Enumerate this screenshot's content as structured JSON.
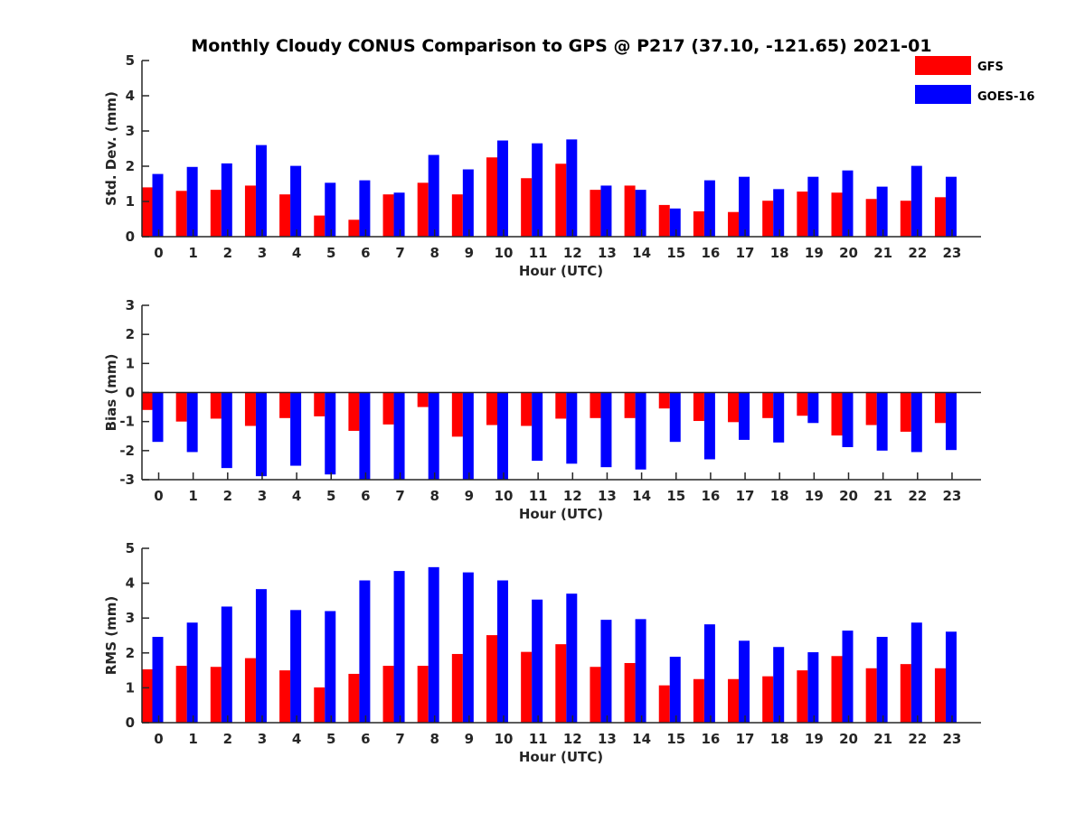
{
  "chart_data": {
    "type": "bar",
    "title": "Monthly Cloudy CONUS Comparison to GPS @ P217 (37.10, -121.65) 2021-01",
    "legend": {
      "placement": "top-right",
      "entries": [
        {
          "name": "GFS",
          "color": "#ff0000"
        },
        {
          "name": "GOES-16",
          "color": "#0000ff"
        }
      ]
    },
    "categories": [
      "0",
      "1",
      "2",
      "3",
      "4",
      "5",
      "6",
      "7",
      "8",
      "9",
      "10",
      "11",
      "12",
      "13",
      "14",
      "15",
      "16",
      "17",
      "18",
      "19",
      "20",
      "21",
      "22",
      "23"
    ],
    "panels": [
      {
        "name": "std-dev",
        "xlabel": "Hour (UTC)",
        "ylabel": "Std. Dev. (mm)",
        "ylim": [
          0,
          5
        ],
        "yticks": [
          "0",
          "1",
          "2",
          "3",
          "4",
          "5"
        ],
        "series": [
          {
            "name": "GFS",
            "color": "#ff0000",
            "values": [
              1.4,
              1.3,
              1.33,
              1.45,
              1.2,
              0.6,
              0.48,
              1.2,
              1.53,
              1.2,
              2.25,
              1.66,
              2.07,
              1.33,
              1.45,
              0.9,
              0.72,
              0.7,
              1.02,
              1.28,
              1.25,
              1.07,
              1.02,
              1.12
            ]
          },
          {
            "name": "GOES-16",
            "color": "#0000ff",
            "values": [
              1.78,
              1.98,
              2.08,
              2.6,
              2.01,
              1.53,
              1.6,
              1.25,
              2.32,
              1.91,
              2.73,
              2.65,
              2.76,
              1.45,
              1.33,
              0.8,
              1.6,
              1.7,
              1.35,
              1.7,
              1.88,
              1.42,
              2.01,
              1.7
            ]
          }
        ]
      },
      {
        "name": "bias",
        "xlabel": "Hour (UTC)",
        "ylabel": "Bias (mm)",
        "ylim": [
          -3,
          3
        ],
        "yticks": [
          "-3",
          "-2",
          "-1",
          "0",
          "1",
          "2",
          "3"
        ],
        "series": [
          {
            "name": "GFS",
            "color": "#ff0000",
            "values": [
              -0.6,
              -1.0,
              -0.9,
              -1.15,
              -0.88,
              -0.82,
              -1.32,
              -1.1,
              -0.5,
              -1.52,
              -1.12,
              -1.15,
              -0.9,
              -0.88,
              -0.88,
              -0.55,
              -0.98,
              -1.02,
              -0.88,
              -0.8,
              -1.48,
              -1.12,
              -1.35,
              -1.05
            ]
          },
          {
            "name": "GOES-16",
            "color": "#0000ff",
            "values": [
              -1.7,
              -2.05,
              -2.6,
              -2.88,
              -2.52,
              -2.82,
              -3.0,
              -3.0,
              -3.0,
              -3.0,
              -3.0,
              -2.35,
              -2.45,
              -2.57,
              -2.65,
              -1.7,
              -2.3,
              -1.63,
              -1.72,
              -1.05,
              -1.88,
              -2.0,
              -2.05,
              -1.98
            ]
          }
        ]
      },
      {
        "name": "rms",
        "xlabel": "Hour (UTC)",
        "ylabel": "RMS (mm)",
        "ylim": [
          0,
          5
        ],
        "yticks": [
          "0",
          "1",
          "2",
          "3",
          "4",
          "5"
        ],
        "series": [
          {
            "name": "GFS",
            "color": "#ff0000",
            "values": [
              1.53,
              1.63,
              1.6,
              1.85,
              1.5,
              1.01,
              1.4,
              1.63,
              1.63,
              1.97,
              2.51,
              2.03,
              2.25,
              1.6,
              1.71,
              1.07,
              1.25,
              1.25,
              1.33,
              1.5,
              1.91,
              1.56,
              1.68,
              1.56
            ]
          },
          {
            "name": "GOES-16",
            "color": "#0000ff",
            "values": [
              2.46,
              2.87,
              3.33,
              3.83,
              3.23,
              3.2,
              4.08,
              4.35,
              4.46,
              4.31,
              4.08,
              3.53,
              3.7,
              2.95,
              2.97,
              1.89,
              2.82,
              2.35,
              2.17,
              2.02,
              2.64,
              2.46,
              2.87,
              2.61
            ]
          }
        ]
      }
    ]
  }
}
